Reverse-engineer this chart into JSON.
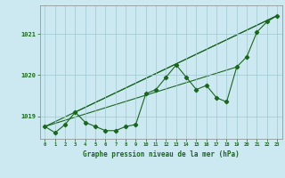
{
  "title": "Graphe pression niveau de la mer (hPa)",
  "background_color": "#cce8f0",
  "grid_color": "#a0c8d0",
  "line_color": "#1a6620",
  "text_color": "#1a6620",
  "xlim": [
    -0.5,
    23.5
  ],
  "ylim": [
    1018.45,
    1021.7
  ],
  "yticks": [
    1019,
    1020,
    1021
  ],
  "xtick_labels": [
    "0",
    "1",
    "2",
    "3",
    "4",
    "5",
    "6",
    "7",
    "8",
    "9",
    "10",
    "11",
    "12",
    "13",
    "14",
    "15",
    "16",
    "17",
    "18",
    "19",
    "20",
    "21",
    "22",
    "23"
  ],
  "main_data": [
    [
      0,
      1018.75
    ],
    [
      1,
      1018.6
    ],
    [
      2,
      1018.8
    ],
    [
      3,
      1019.1
    ],
    [
      4,
      1018.85
    ],
    [
      5,
      1018.75
    ],
    [
      6,
      1018.65
    ],
    [
      7,
      1018.65
    ],
    [
      8,
      1018.75
    ],
    [
      9,
      1018.8
    ],
    [
      10,
      1019.55
    ],
    [
      11,
      1019.65
    ],
    [
      12,
      1019.95
    ],
    [
      13,
      1020.25
    ],
    [
      14,
      1019.95
    ],
    [
      15,
      1019.65
    ],
    [
      16,
      1019.75
    ],
    [
      17,
      1019.45
    ],
    [
      18,
      1019.35
    ],
    [
      19,
      1020.2
    ],
    [
      20,
      1020.45
    ],
    [
      21,
      1021.05
    ],
    [
      22,
      1021.3
    ],
    [
      23,
      1021.45
    ]
  ],
  "trend_line1": [
    [
      0,
      1018.75
    ],
    [
      23,
      1021.45
    ]
  ],
  "trend_line2": [
    [
      3,
      1019.1
    ],
    [
      23,
      1021.45
    ]
  ],
  "trend_line3": [
    [
      0,
      1018.75
    ],
    [
      19,
      1020.2
    ]
  ]
}
